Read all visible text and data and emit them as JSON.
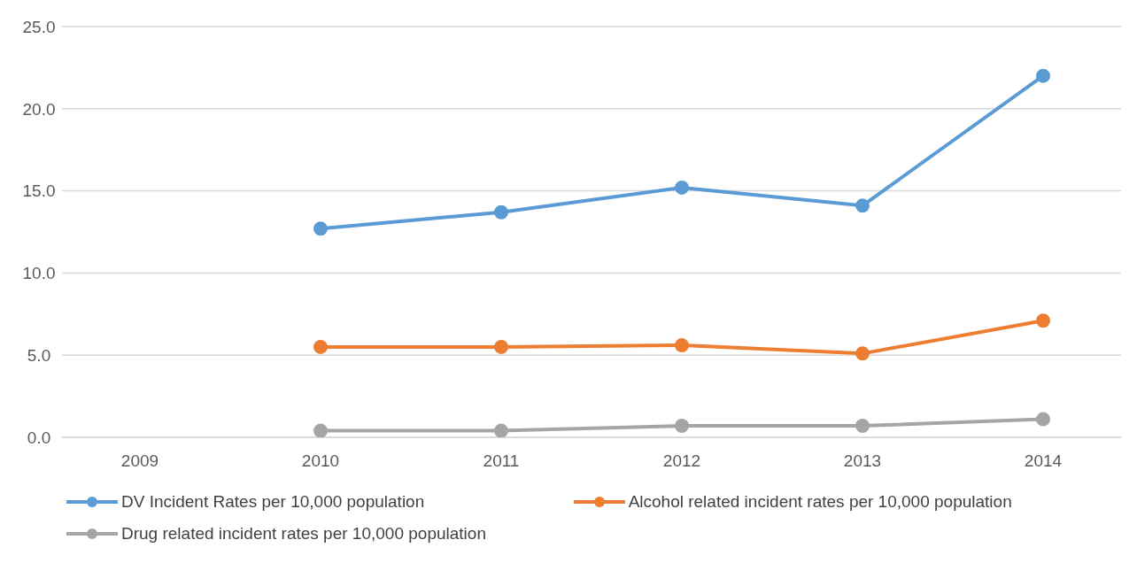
{
  "chart_data": {
    "type": "line",
    "categories": [
      "2009",
      "2010",
      "2011",
      "2012",
      "2013",
      "2014"
    ],
    "series": [
      {
        "name": "DV Incident Rates per 10,000 population",
        "color": "#5b9bd5",
        "values": [
          null,
          12.7,
          13.7,
          15.2,
          14.1,
          22.0
        ]
      },
      {
        "name": "Alcohol related incident rates per 10,000 population",
        "color": "#ed7d31",
        "values": [
          null,
          5.5,
          5.5,
          5.6,
          5.1,
          7.1
        ]
      },
      {
        "name": "Drug related incident rates per 10,000 population",
        "color": "#a5a5a5",
        "values": [
          null,
          0.4,
          0.4,
          0.7,
          0.7,
          1.1
        ]
      }
    ],
    "ylim": [
      0,
      25
    ],
    "yticks": [
      {
        "value": 0,
        "label": "0.0"
      },
      {
        "value": 5,
        "label": "5.0"
      },
      {
        "value": 10,
        "label": "10.0"
      },
      {
        "value": 15,
        "label": "15.0"
      },
      {
        "value": 20,
        "label": "20.0"
      },
      {
        "value": 25,
        "label": "25.0"
      }
    ],
    "grid": "y",
    "legend": "bottom",
    "marker": "circle",
    "line_style": "solid"
  }
}
